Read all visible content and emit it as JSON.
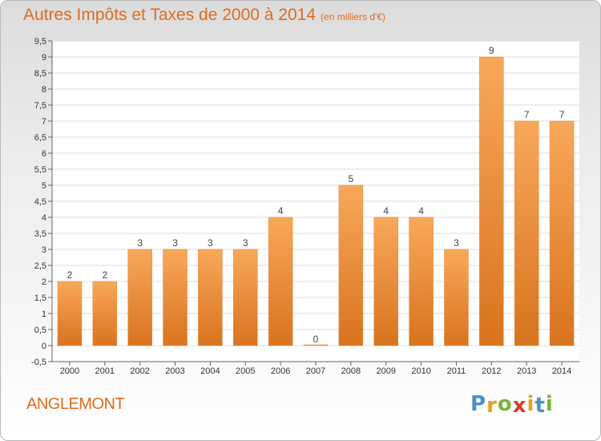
{
  "title": "Autres Impôts et Taxes de 2000 à 2014",
  "subtitle": "(en milliers d'€)",
  "commune": "ANGLEMONT",
  "logo": {
    "letters": [
      "P",
      "r",
      "o",
      "x",
      "i",
      "t",
      "i"
    ],
    "colors": [
      "#4a90c8",
      "#e8a020",
      "#7ab23a",
      "#d93a2a",
      "#e8a020",
      "#4a90c8",
      "#7ab23a"
    ]
  },
  "colors": {
    "bar_light": "#f8a85a",
    "bar_dark": "#d9731e",
    "accent": "#e06a1c"
  },
  "chart_data": {
    "type": "bar",
    "categories": [
      "2000",
      "2001",
      "2002",
      "2003",
      "2004",
      "2005",
      "2006",
      "2007",
      "2008",
      "2009",
      "2010",
      "2011",
      "2012",
      "2013",
      "2014"
    ],
    "values": [
      2,
      2,
      3,
      3,
      3,
      3,
      4,
      0,
      5,
      4,
      4,
      3,
      9,
      7,
      7
    ],
    "ylim": [
      -0.5,
      9.5
    ],
    "yticks": [
      "-0,5",
      "0",
      "0,5",
      "1",
      "1,5",
      "2",
      "2,5",
      "3",
      "3,5",
      "4",
      "4,5",
      "5",
      "5,5",
      "6",
      "6,5",
      "7",
      "7,5",
      "8",
      "8,5",
      "9",
      "9,5"
    ],
    "grid": true
  }
}
